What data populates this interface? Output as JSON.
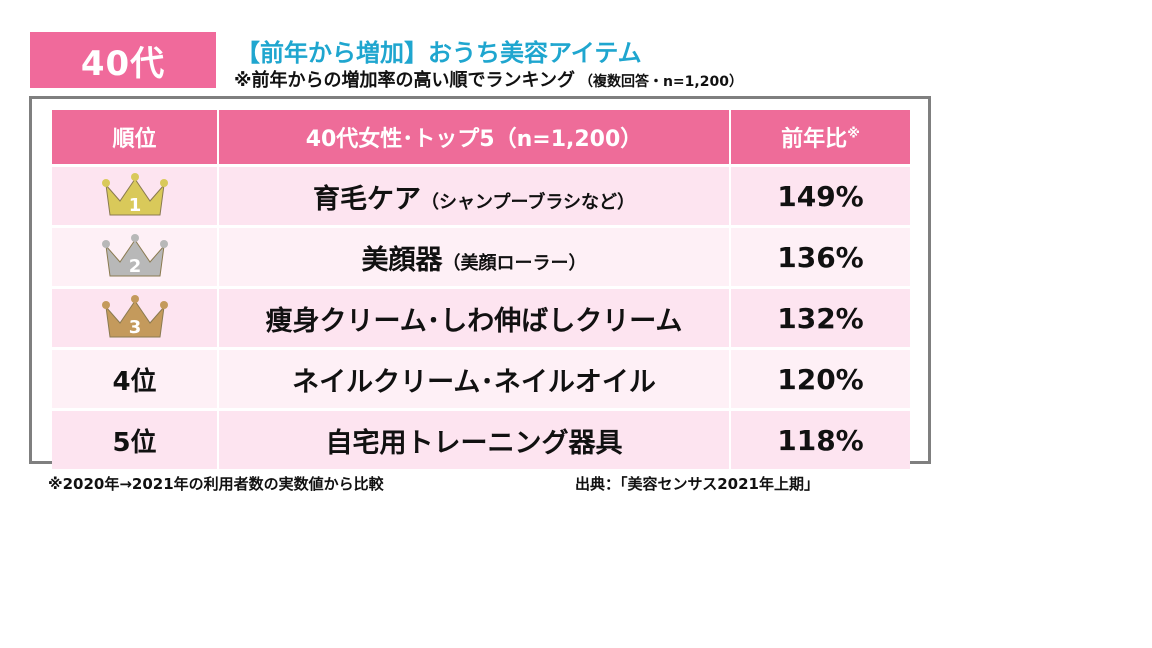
{
  "badge": "40代",
  "headline": "【前年から増加】おうち美容アイテム",
  "subline": {
    "main": "※前年からの増加率の高い順でランキング",
    "small": "（複数回答・n=1,200）"
  },
  "table": {
    "headers": {
      "rank": "順位",
      "item": "40代女性･トップ5（n=1,200）",
      "ratio": "前年比",
      "ratio_mark": "※"
    },
    "rows": [
      {
        "rank": "1",
        "crown": "gold",
        "item": "育毛ケア",
        "note": "（シャンプーブラシなど）",
        "ratio": "149%"
      },
      {
        "rank": "2",
        "crown": "silver",
        "item": "美顔器",
        "note": "（美顔ローラー）",
        "ratio": "136%"
      },
      {
        "rank": "3",
        "crown": "bronze",
        "item": "痩身クリーム･しわ伸ばしクリーム",
        "note": "",
        "ratio": "132%"
      },
      {
        "rank": "4位",
        "crown": "",
        "item": "ネイルクリーム･ネイルオイル",
        "note": "",
        "ratio": "120%"
      },
      {
        "rank": "5位",
        "crown": "",
        "item": "自宅用トレーニング器具",
        "note": "",
        "ratio": "118%"
      }
    ]
  },
  "colors": {
    "accent_pink": "#ee6c99",
    "headline_blue": "#1fa6cf",
    "row_odd": "#fde4f0",
    "row_even": "#fef0f6",
    "gold": "#d9c95a",
    "silver": "#b8b8b8",
    "bronze": "#c49a5c"
  },
  "footnote": "※2020年→2021年の利用者数の実数値から比較",
  "source": "出典：「美容センサス2021年上期」"
}
